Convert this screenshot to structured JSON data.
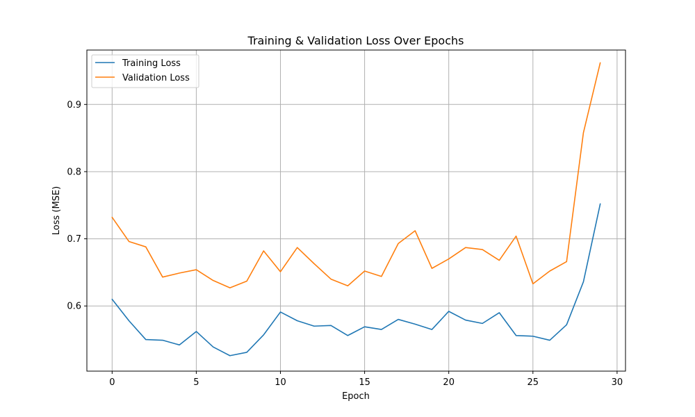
{
  "chart_data": {
    "type": "line",
    "title": "Training & Validation Loss Over Epochs",
    "xlabel": "Epoch",
    "ylabel": "Loss (MSE)",
    "xlim": [
      -1.5,
      30.5
    ],
    "ylim": [
      0.503,
      0.981
    ],
    "xticks": [
      0,
      5,
      10,
      15,
      20,
      25,
      30
    ],
    "yticks": [
      0.6,
      0.7,
      0.8,
      0.9
    ],
    "grid": true,
    "legend_position": "top-left",
    "x": [
      0,
      1,
      2,
      3,
      4,
      5,
      6,
      7,
      8,
      9,
      10,
      11,
      12,
      13,
      14,
      15,
      16,
      17,
      18,
      19,
      20,
      21,
      22,
      23,
      24,
      25,
      26,
      27,
      28,
      29
    ],
    "series": [
      {
        "name": "Training Loss",
        "color": "#1f77b4",
        "values": [
          0.61,
          0.578,
          0.55,
          0.549,
          0.542,
          0.562,
          0.539,
          0.526,
          0.531,
          0.557,
          0.591,
          0.578,
          0.57,
          0.571,
          0.556,
          0.569,
          0.565,
          0.58,
          0.573,
          0.565,
          0.592,
          0.579,
          0.574,
          0.59,
          0.556,
          0.555,
          0.549,
          0.572,
          0.636,
          0.752
        ]
      },
      {
        "name": "Validation Loss",
        "color": "#ff7f0e",
        "values": [
          0.732,
          0.696,
          0.688,
          0.643,
          0.649,
          0.654,
          0.638,
          0.627,
          0.637,
          0.682,
          0.651,
          0.687,
          0.663,
          0.64,
          0.63,
          0.652,
          0.644,
          0.693,
          0.712,
          0.656,
          0.67,
          0.687,
          0.684,
          0.668,
          0.704,
          0.633,
          0.652,
          0.666,
          0.858,
          0.962
        ]
      }
    ]
  }
}
